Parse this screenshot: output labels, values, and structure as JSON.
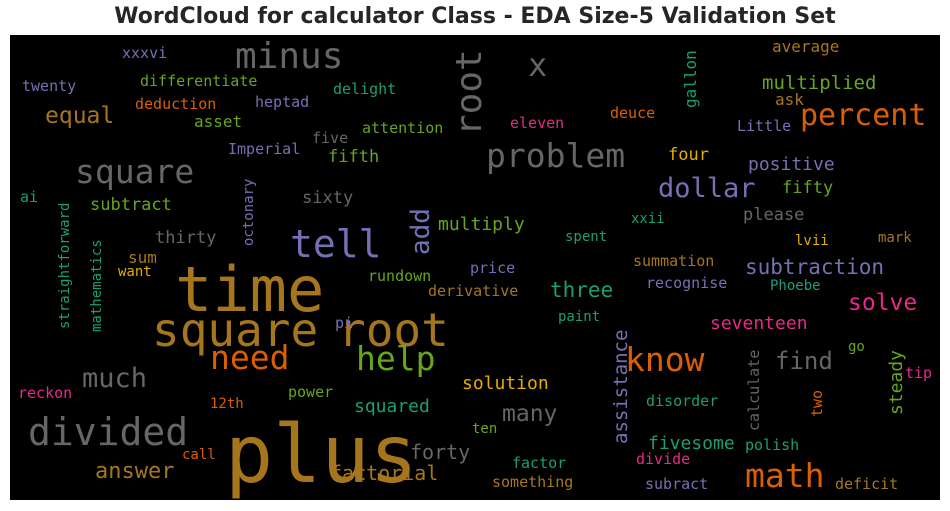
{
  "title": "WordCloud for calculator Class - EDA Size-5 Validation Set",
  "chart_data": {
    "type": "wordcloud",
    "title": "WordCloud for calculator Class - EDA Size-5 Validation Set",
    "background": "#000000",
    "palette": [
      "#666666",
      "#a6761d",
      "#7570b3",
      "#66a61e",
      "#d95f02",
      "#e7298a",
      "#1b9e77",
      "#e6ab02"
    ],
    "words": [
      {
        "text": "plus",
        "color": "#a6761d"
      },
      {
        "text": "time",
        "color": "#a6761d"
      },
      {
        "text": "square",
        "color": "#a6761d"
      },
      {
        "text": "root",
        "color": "#a6761d"
      },
      {
        "text": "divided",
        "color": "#666666"
      },
      {
        "text": "tell",
        "color": "#7570b3"
      },
      {
        "text": "minus",
        "color": "#666666"
      },
      {
        "text": "root",
        "color": "#666666"
      },
      {
        "text": "problem",
        "color": "#666666"
      },
      {
        "text": "square",
        "color": "#666666"
      },
      {
        "text": "need",
        "color": "#d95f02"
      },
      {
        "text": "help",
        "color": "#66a61e"
      },
      {
        "text": "know",
        "color": "#d95f02"
      },
      {
        "text": "math",
        "color": "#d95f02"
      },
      {
        "text": "percent",
        "color": "#d95f02"
      },
      {
        "text": "x",
        "color": "#666666"
      },
      {
        "text": "dollar",
        "color": "#7570b3"
      },
      {
        "text": "much",
        "color": "#666666"
      },
      {
        "text": "add",
        "color": "#7570b3"
      },
      {
        "text": "equal",
        "color": "#a6761d"
      },
      {
        "text": "many",
        "color": "#666666"
      },
      {
        "text": "find",
        "color": "#666666"
      },
      {
        "text": "subtraction",
        "color": "#7570b3"
      },
      {
        "text": "answer",
        "color": "#a6761d"
      },
      {
        "text": "solve",
        "color": "#e7298a"
      },
      {
        "text": "three",
        "color": "#1b9e77"
      },
      {
        "text": "factorial",
        "color": "#a6761d"
      },
      {
        "text": "multiplied",
        "color": "#66a61e"
      },
      {
        "text": "forty",
        "color": "#666666"
      },
      {
        "text": "solution",
        "color": "#e6ab02"
      },
      {
        "text": "seventeen",
        "color": "#e7298a"
      },
      {
        "text": "assistance",
        "color": "#7570b3"
      },
      {
        "text": "fivesome",
        "color": "#1b9e77"
      },
      {
        "text": "steady",
        "color": "#66a61e"
      },
      {
        "text": "multiply",
        "color": "#66a61e"
      },
      {
        "text": "positive",
        "color": "#7570b3"
      },
      {
        "text": "squared",
        "color": "#1b9e77"
      },
      {
        "text": "subtract",
        "color": "#66a61e"
      },
      {
        "text": "thirty",
        "color": "#666666"
      },
      {
        "text": "fifth",
        "color": "#66a61e"
      },
      {
        "text": "four",
        "color": "#e6ab02"
      },
      {
        "text": "fifty",
        "color": "#66a61e"
      },
      {
        "text": "please",
        "color": "#666666"
      },
      {
        "text": "average",
        "color": "#a6761d"
      },
      {
        "text": "asset",
        "color": "#66a61e"
      },
      {
        "text": "ask",
        "color": "#a6761d"
      },
      {
        "text": "sixty",
        "color": "#666666"
      },
      {
        "text": "sum",
        "color": "#a6761d"
      },
      {
        "text": "gallon",
        "color": "#1b9e77"
      },
      {
        "text": "calculate",
        "color": "#666666"
      },
      {
        "text": "pi",
        "color": "#7570b3"
      },
      {
        "text": "go",
        "color": "#66a61e"
      },
      {
        "text": "two",
        "color": "#d95f02"
      },
      {
        "text": "tip",
        "color": "#e7298a"
      },
      {
        "text": "xxxvi",
        "color": "#7570b3"
      },
      {
        "text": "differentiate",
        "color": "#66a61e"
      },
      {
        "text": "twenty",
        "color": "#7570b3"
      },
      {
        "text": "deduction",
        "color": "#d95f02"
      },
      {
        "text": "heptad",
        "color": "#7570b3"
      },
      {
        "text": "delight",
        "color": "#1b9e77"
      },
      {
        "text": "eleven",
        "color": "#e7298a"
      },
      {
        "text": "deuce",
        "color": "#d95f02"
      },
      {
        "text": "Little",
        "color": "#7570b3"
      },
      {
        "text": "five",
        "color": "#666666"
      },
      {
        "text": "attention",
        "color": "#66a61e"
      },
      {
        "text": "Imperial",
        "color": "#7570b3"
      },
      {
        "text": "octonary",
        "color": "#7570b3"
      },
      {
        "text": "ai",
        "color": "#1b9e77"
      },
      {
        "text": "straightforward",
        "color": "#1b9e77"
      },
      {
        "text": "mathematics",
        "color": "#1b9e77"
      },
      {
        "text": "want",
        "color": "#e6ab02"
      },
      {
        "text": "rundown",
        "color": "#66a61e"
      },
      {
        "text": "price",
        "color": "#7570b3"
      },
      {
        "text": "derivative",
        "color": "#a6761d"
      },
      {
        "text": "paint",
        "color": "#1b9e77"
      },
      {
        "text": "spent",
        "color": "#1b9e77"
      },
      {
        "text": "xxii",
        "color": "#1b9e77"
      },
      {
        "text": "lvii",
        "color": "#e6ab02"
      },
      {
        "text": "mark",
        "color": "#a6761d"
      },
      {
        "text": "summation",
        "color": "#a6761d"
      },
      {
        "text": "recognise",
        "color": "#7570b3"
      },
      {
        "text": "Phoebe",
        "color": "#1b9e77"
      },
      {
        "text": "reckon",
        "color": "#e7298a"
      },
      {
        "text": "power",
        "color": "#66a61e"
      },
      {
        "text": "12th",
        "color": "#d95f02"
      },
      {
        "text": "ten",
        "color": "#66a61e"
      },
      {
        "text": "disorder",
        "color": "#1b9e77"
      },
      {
        "text": "polish",
        "color": "#1b9e77"
      },
      {
        "text": "call",
        "color": "#d95f02"
      },
      {
        "text": "factor",
        "color": "#1b9e77"
      },
      {
        "text": "divide",
        "color": "#e7298a"
      },
      {
        "text": "something",
        "color": "#a6761d"
      },
      {
        "text": "subract",
        "color": "#7570b3"
      },
      {
        "text": "deficit",
        "color": "#a6761d"
      }
    ]
  }
}
